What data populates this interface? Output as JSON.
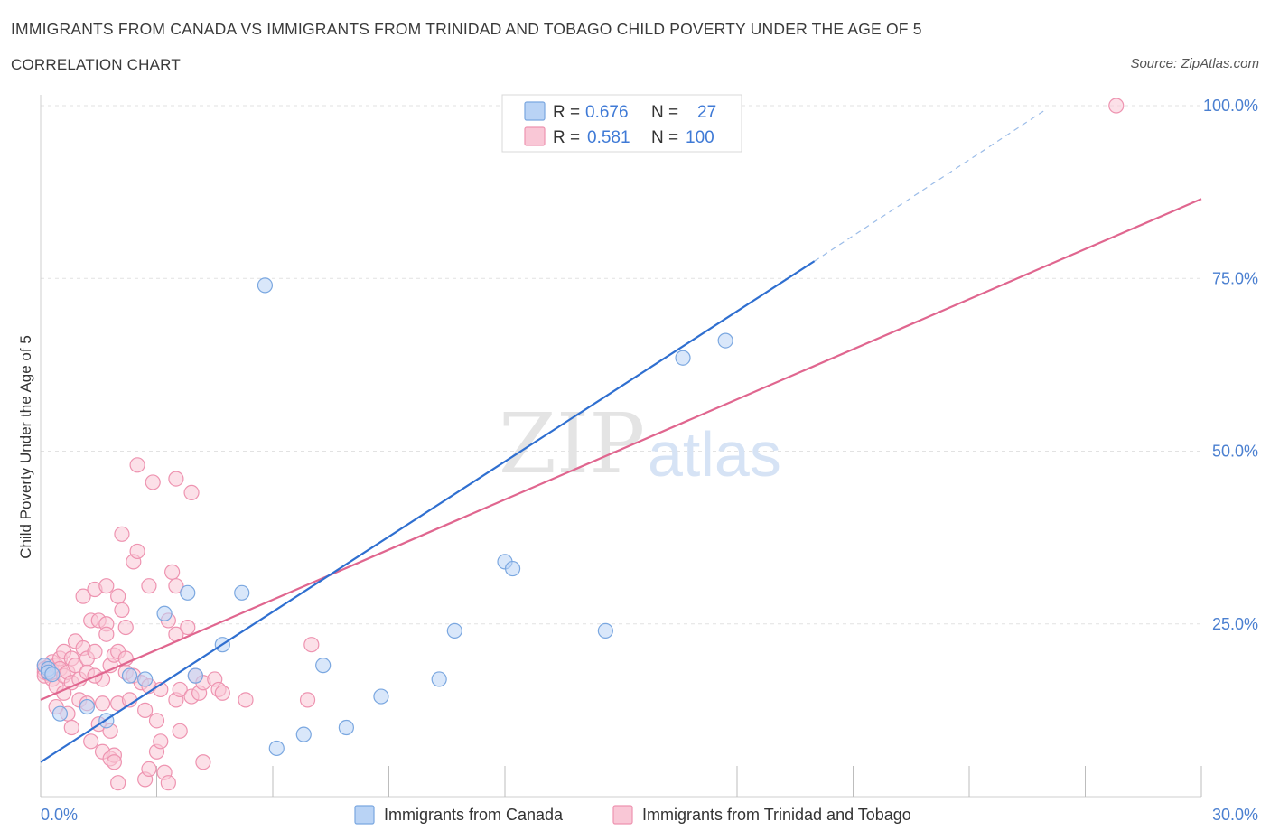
{
  "title": "IMMIGRANTS FROM CANADA VS IMMIGRANTS FROM TRINIDAD AND TOBAGO CHILD POVERTY UNDER THE AGE OF 5",
  "subtitle": "CORRELATION CHART",
  "source": "Source: ZipAtlas.com",
  "watermark": {
    "zip": "ZIP",
    "atlas": "atlas"
  },
  "colors": {
    "canada_fill": "#b9d3f5",
    "canada_stroke": "#7aa7e0",
    "canada_line": "#2f6fd0",
    "tt_fill": "#f9c7d6",
    "tt_stroke": "#ee93b0",
    "tt_line": "#e0668f",
    "tick": "#4a7fd0",
    "grid": "#e2e2e2"
  },
  "stats_box": {
    "rows": [
      {
        "r_label": "R = ",
        "r_value": "0.676",
        "n_label": "N = ",
        "n_value": "27"
      },
      {
        "r_label": "R = ",
        "r_value": "0.581",
        "n_label": "N = ",
        "n_value": "100"
      }
    ]
  },
  "chart_data": {
    "type": "scatter",
    "title": "IMMIGRANTS FROM CANADA VS IMMIGRANTS FROM TRINIDAD AND TOBAGO CHILD POVERTY UNDER THE AGE OF 5",
    "subtitle": "CORRELATION CHART",
    "xlabel": "",
    "ylabel": "Child Poverty Under the Age of 5",
    "xlim": [
      0,
      30
    ],
    "ylim": [
      0,
      100
    ],
    "x_ticks": [
      {
        "value": 0,
        "label": "0.0%"
      },
      {
        "value": 30,
        "label": "30.0%"
      }
    ],
    "y_ticks": [
      {
        "value": 25,
        "label": "25.0%"
      },
      {
        "value": 50,
        "label": "50.0%"
      },
      {
        "value": 75,
        "label": "75.0%"
      },
      {
        "value": 100,
        "label": "100.0%"
      }
    ],
    "grid": true,
    "legend_position": "bottom",
    "series": [
      {
        "name": "Immigrants from Canada",
        "R": 0.676,
        "N": 27,
        "trend": {
          "x": [
            0,
            20.0
          ],
          "y": [
            5.0,
            77.5
          ]
        },
        "trend_dashed": {
          "x": [
            20.0,
            26.0
          ],
          "y": [
            77.5,
            99.5
          ]
        },
        "points": [
          [
            0.1,
            19.0
          ],
          [
            0.2,
            18.5
          ],
          [
            0.2,
            18.0
          ],
          [
            0.3,
            17.7
          ],
          [
            0.5,
            12.0
          ],
          [
            1.2,
            13.0
          ],
          [
            1.7,
            11.0
          ],
          [
            2.3,
            17.5
          ],
          [
            2.7,
            17.0
          ],
          [
            3.2,
            26.5
          ],
          [
            3.8,
            29.5
          ],
          [
            4.0,
            17.5
          ],
          [
            4.7,
            22.0
          ],
          [
            5.2,
            29.5
          ],
          [
            5.8,
            74.0
          ],
          [
            6.1,
            7.0
          ],
          [
            6.8,
            9.0
          ],
          [
            7.3,
            19.0
          ],
          [
            7.9,
            10.0
          ],
          [
            8.8,
            14.5
          ],
          [
            10.3,
            17.0
          ],
          [
            10.7,
            24.0
          ],
          [
            12.0,
            34.0
          ],
          [
            12.2,
            33.0
          ],
          [
            14.6,
            24.0
          ],
          [
            16.6,
            63.5
          ],
          [
            17.7,
            66.0
          ]
        ]
      },
      {
        "name": "Immigrants from Trinidad and Tobago",
        "R": 0.581,
        "N": 100,
        "trend": {
          "x": [
            0,
            30.0
          ],
          "y": [
            14.0,
            86.5
          ]
        },
        "points": [
          [
            0.1,
            18.0
          ],
          [
            0.1,
            19.0
          ],
          [
            0.1,
            18.5
          ],
          [
            0.1,
            17.5
          ],
          [
            0.2,
            18.8
          ],
          [
            0.2,
            18.2
          ],
          [
            0.2,
            17.8
          ],
          [
            0.3,
            19.5
          ],
          [
            0.3,
            17.0
          ],
          [
            0.3,
            18.0
          ],
          [
            0.4,
            19.0
          ],
          [
            0.4,
            16.0
          ],
          [
            0.4,
            13.0
          ],
          [
            0.5,
            20.0
          ],
          [
            0.5,
            18.5
          ],
          [
            0.6,
            17.5
          ],
          [
            0.6,
            21.0
          ],
          [
            0.7,
            12.0
          ],
          [
            0.7,
            18.0
          ],
          [
            0.8,
            20.0
          ],
          [
            0.8,
            10.0
          ],
          [
            0.8,
            16.5
          ],
          [
            0.9,
            19.0
          ],
          [
            0.9,
            22.5
          ],
          [
            1.0,
            14.0
          ],
          [
            1.0,
            17.0
          ],
          [
            1.1,
            29.0
          ],
          [
            1.1,
            21.5
          ],
          [
            1.2,
            20.0
          ],
          [
            1.2,
            18.0
          ],
          [
            1.2,
            13.5
          ],
          [
            1.3,
            8.0
          ],
          [
            1.3,
            25.5
          ],
          [
            1.4,
            30.0
          ],
          [
            1.4,
            21.0
          ],
          [
            1.5,
            10.5
          ],
          [
            1.5,
            25.5
          ],
          [
            1.6,
            6.5
          ],
          [
            1.6,
            17.0
          ],
          [
            1.6,
            13.5
          ],
          [
            1.7,
            25.0
          ],
          [
            1.7,
            30.5
          ],
          [
            1.7,
            23.5
          ],
          [
            1.8,
            19.0
          ],
          [
            1.8,
            5.5
          ],
          [
            1.8,
            9.5
          ],
          [
            1.9,
            6.0
          ],
          [
            1.9,
            5.0
          ],
          [
            1.9,
            20.5
          ],
          [
            2.0,
            21.0
          ],
          [
            2.0,
            29.0
          ],
          [
            2.0,
            2.0
          ],
          [
            2.0,
            13.5
          ],
          [
            2.1,
            38.0
          ],
          [
            2.1,
            27.0
          ],
          [
            2.2,
            24.5
          ],
          [
            2.2,
            18.0
          ],
          [
            2.2,
            20.0
          ],
          [
            2.3,
            14.0
          ],
          [
            2.4,
            34.0
          ],
          [
            2.4,
            17.5
          ],
          [
            2.5,
            35.5
          ],
          [
            2.5,
            48.0
          ],
          [
            2.6,
            16.5
          ],
          [
            2.7,
            2.5
          ],
          [
            2.8,
            30.5
          ],
          [
            2.8,
            4.0
          ],
          [
            2.8,
            16.0
          ],
          [
            2.9,
            45.5
          ],
          [
            3.0,
            11.0
          ],
          [
            3.0,
            6.5
          ],
          [
            3.1,
            8.0
          ],
          [
            3.1,
            15.5
          ],
          [
            3.2,
            3.5
          ],
          [
            3.3,
            2.0
          ],
          [
            3.3,
            25.5
          ],
          [
            3.4,
            32.5
          ],
          [
            3.5,
            30.5
          ],
          [
            3.5,
            23.5
          ],
          [
            3.5,
            14.0
          ],
          [
            3.5,
            46.0
          ],
          [
            3.6,
            9.5
          ],
          [
            3.6,
            15.5
          ],
          [
            3.8,
            24.5
          ],
          [
            3.9,
            14.5
          ],
          [
            3.9,
            44.0
          ],
          [
            4.0,
            17.5
          ],
          [
            4.1,
            15.0
          ],
          [
            4.2,
            5.0
          ],
          [
            4.2,
            16.5
          ],
          [
            4.5,
            17.0
          ],
          [
            4.6,
            15.5
          ],
          [
            4.7,
            15.0
          ],
          [
            5.3,
            14.0
          ],
          [
            6.9,
            14.0
          ],
          [
            7.0,
            22.0
          ],
          [
            27.8,
            100.0
          ],
          [
            1.4,
            17.5
          ],
          [
            0.6,
            15.0
          ],
          [
            2.7,
            12.5
          ]
        ]
      }
    ]
  }
}
